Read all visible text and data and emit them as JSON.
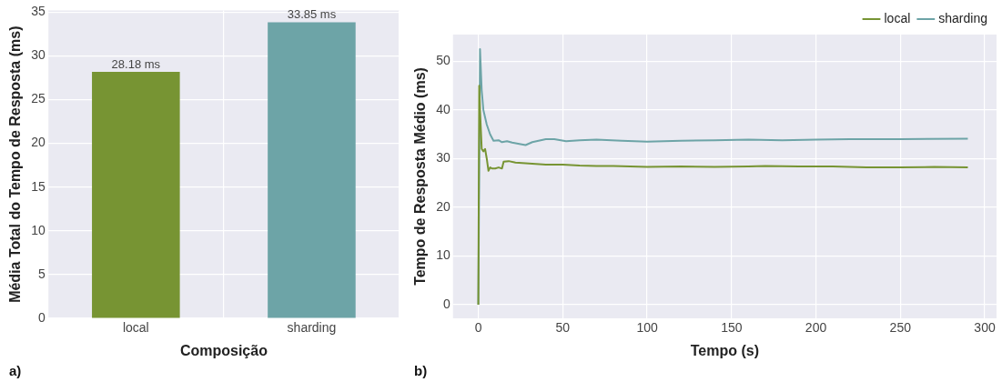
{
  "chart_data": [
    {
      "type": "bar",
      "xlabel": "Composição",
      "ylabel": "Média Total do Tempo de Resposta (ms)",
      "categories": [
        "local",
        "sharding"
      ],
      "values": [
        28.18,
        33.85
      ],
      "colors": [
        "#779433",
        "#6da4a7"
      ],
      "value_labels": [
        "28.18 ms",
        "33.85 ms"
      ],
      "ylim": [
        0,
        35.2
      ],
      "yticks": [
        0,
        5,
        10,
        15,
        20,
        25,
        30,
        35
      ],
      "grid": true,
      "legend": false,
      "annotations": [
        "a)"
      ]
    },
    {
      "type": "line",
      "xlabel": "Tempo (s)",
      "ylabel": "Tempo de Resposta Médio (ms)",
      "xlim": [
        -15,
        307
      ],
      "xticks": [
        0,
        50,
        100,
        150,
        200,
        250,
        300
      ],
      "ylim": [
        -2.8,
        55.5
      ],
      "yticks": [
        0,
        10,
        20,
        30,
        40,
        50
      ],
      "grid": true,
      "legend": "top right",
      "annotations": [
        "b)"
      ],
      "series": [
        {
          "name": "local",
          "color": "#779433",
          "x": [
            0,
            0.5,
            1,
            2,
            3,
            4,
            5,
            6,
            7,
            8,
            10,
            12,
            14,
            15,
            18,
            22,
            30,
            40,
            50,
            60,
            70,
            80,
            90,
            100,
            120,
            140,
            160,
            170,
            190,
            210,
            230,
            250,
            270,
            290
          ],
          "values": [
            0,
            45,
            40,
            32,
            31.5,
            32,
            30,
            27.5,
            28.2,
            28,
            28,
            28.2,
            28,
            29.4,
            29.5,
            29.2,
            29,
            28.8,
            28.8,
            28.6,
            28.5,
            28.5,
            28.4,
            28.3,
            28.4,
            28.3,
            28.4,
            28.5,
            28.4,
            28.4,
            28.2,
            28.2,
            28.3,
            28.2
          ]
        },
        {
          "name": "sharding",
          "color": "#6da4a7",
          "x": [
            0,
            1,
            2,
            3,
            5,
            7,
            9,
            12,
            14,
            17,
            20,
            25,
            28,
            32,
            40,
            45,
            52,
            60,
            70,
            85,
            100,
            120,
            140,
            160,
            180,
            200,
            220,
            250,
            290
          ],
          "values": [
            0,
            52.5,
            44,
            40,
            37,
            35,
            33.7,
            33.8,
            33.4,
            33.6,
            33.3,
            33,
            32.8,
            33.4,
            34,
            34,
            33.6,
            33.8,
            33.9,
            33.7,
            33.5,
            33.7,
            33.8,
            33.9,
            33.8,
            33.9,
            34,
            34,
            34.1
          ]
        }
      ]
    }
  ]
}
